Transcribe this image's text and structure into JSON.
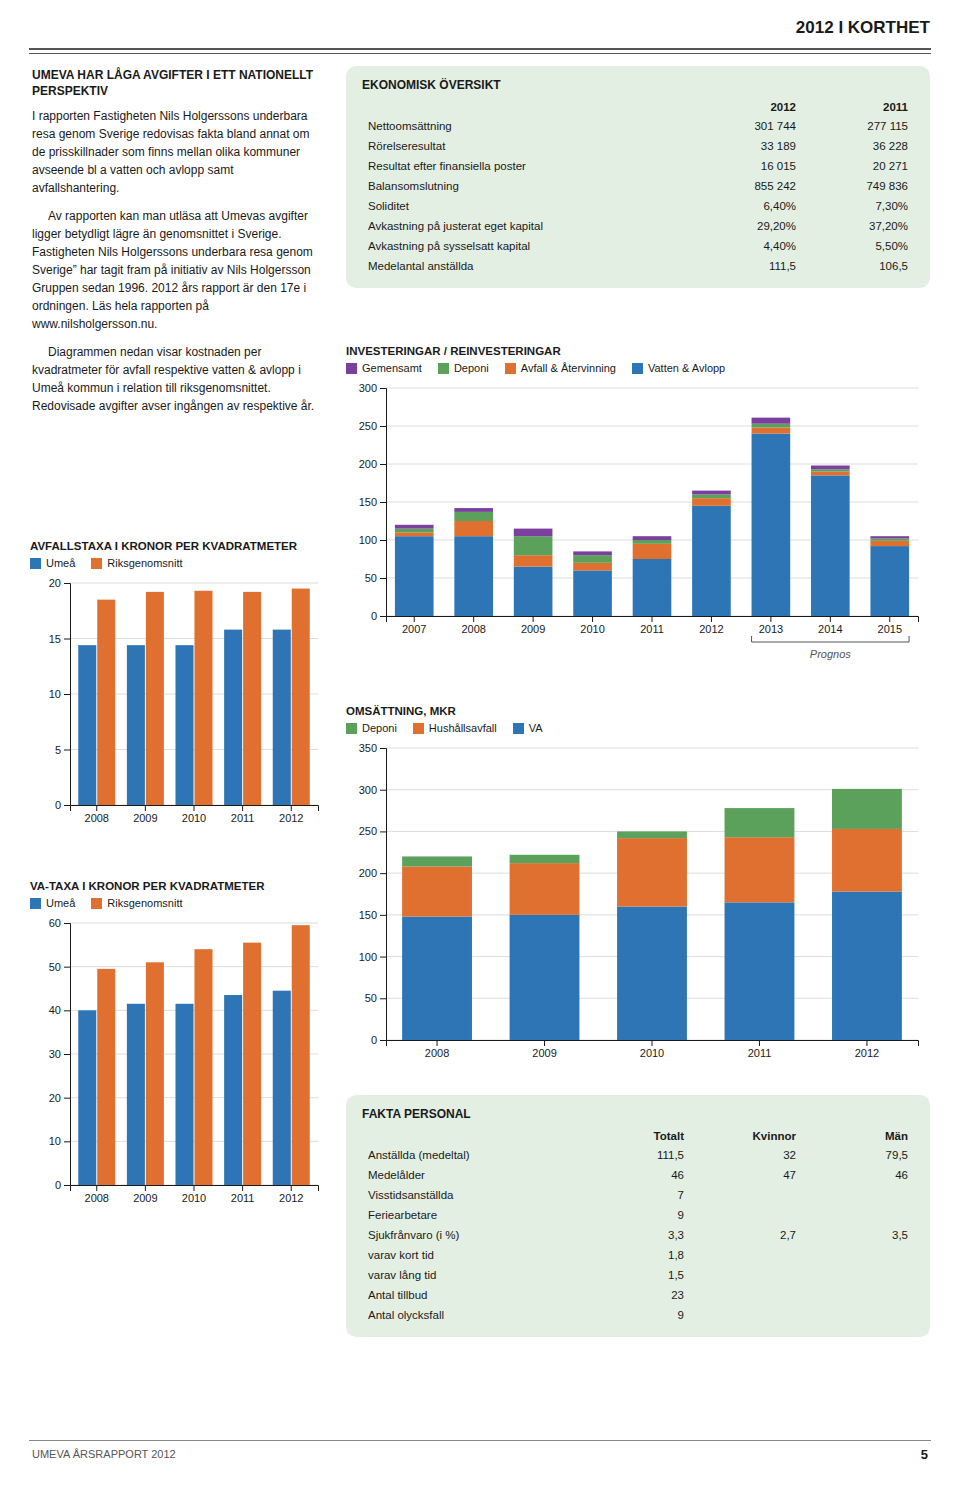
{
  "page_title": "2012 I KORTHET",
  "text": {
    "title": "UMEVA HAR LÅGA AVGIFTER I ETT NATIONELLT PERSPEKTIV",
    "paragraphs": [
      "I rapporten Fastigheten Nils Holgerssons underbara resa genom Sverige redovisas fakta bland annat om de prisskillnader som finns mellan olika kommuner avseende bl a vatten och avlopp samt avfallshantering.",
      "Av rapporten kan man utläsa att Umevas avgifter ligger betydligt lägre än genomsnittet i Sverige. Fastigheten Nils Holgerssons underbara resa genom Sverige” har tagit fram på initiativ av Nils Holgersson Gruppen sedan 1996. 2012 års rapport är den 17e i ordningen. Läs hela rapporten på www.nilsholgersson.nu.",
      "Diagrammen nedan visar kostnaden per kvadratmeter för avfall respektive vatten & avlopp i Umeå kommun i relation till riksgenomsnittet. Redovisade avgifter avser ingången av respektive år."
    ]
  },
  "tables": [
    {
      "title": "EKONOMISK ÖVERSIKT",
      "columns": [
        "2012",
        "2011"
      ],
      "rows": [
        [
          "Nettoomsättning",
          "301 744",
          "277 115"
        ],
        [
          "Rörelseresultat",
          "33 189",
          "36 228"
        ],
        [
          "Resultat efter finansiella poster",
          "16 015",
          "20 271"
        ],
        [
          "Balansomslutning",
          "855 242",
          "749 836"
        ],
        [
          "Soliditet",
          "6,40%",
          "7,30%"
        ],
        [
          "Avkastning på justerat eget kapital",
          "29,20%",
          "37,20%"
        ],
        [
          "Avkastning på sysselsatt kapital",
          "4,40%",
          "5,50%"
        ],
        [
          "Medelantal anställda",
          "111,5",
          "106,5"
        ]
      ]
    },
    {
      "title": "FAKTA PERSONAL",
      "columns": [
        "Totalt",
        "Kvinnor",
        "Män"
      ],
      "rows": [
        [
          "Anställda (medeltal)",
          "111,5",
          "32",
          "79,5"
        ],
        [
          "Medelålder",
          "46",
          "47",
          "46"
        ],
        [
          "Visstidsanställda",
          "7",
          null,
          null
        ],
        [
          "Feriearbetare",
          "9",
          null,
          null
        ],
        [
          "Sjukfrånvaro (i %)",
          "3,3",
          "2,7",
          "3,5"
        ],
        [
          "varav kort tid",
          "1,8",
          null,
          null
        ],
        [
          "varav lång tid",
          "1,5",
          null,
          null
        ],
        [
          "Antal tillbud",
          "23",
          null,
          null
        ],
        [
          "Antal olycksfall",
          "9",
          null,
          null
        ]
      ]
    }
  ],
  "chart_data": [
    {
      "type": "bar",
      "title": "AVFALLSTAXA I KRONOR PER KVADRATMETER",
      "categories": [
        "2008",
        "2009",
        "2010",
        "2011",
        "2012"
      ],
      "series": [
        {
          "name": "Umeå",
          "color": "#2e75b6",
          "values": [
            14.4,
            14.4,
            14.4,
            15.8,
            15.8
          ]
        },
        {
          "name": "Riksgenomsnitt",
          "color": "#e07030",
          "values": [
            18.5,
            19.2,
            19.3,
            19.2,
            19.5
          ]
        }
      ],
      "ylim": [
        0,
        20
      ],
      "yticks": [
        0,
        5,
        10,
        15,
        20
      ],
      "grid": true,
      "legend": "top"
    },
    {
      "type": "bar",
      "title": "VA-TAXA I KRONOR PER KVADRATMETER",
      "categories": [
        "2008",
        "2009",
        "2010",
        "2011",
        "2012"
      ],
      "series": [
        {
          "name": "Umeå",
          "color": "#2e75b6",
          "values": [
            40.0,
            41.5,
            41.5,
            43.5,
            44.5
          ]
        },
        {
          "name": "Riksgenomsnitt",
          "color": "#e07030",
          "values": [
            49.5,
            51.0,
            54.0,
            55.5,
            59.5
          ]
        }
      ],
      "ylim": [
        0,
        60
      ],
      "yticks": [
        0,
        10,
        20,
        30,
        40,
        50,
        60
      ],
      "grid": true,
      "legend": "top"
    },
    {
      "type": "bar",
      "title": "INVESTERINGAR / REINVESTERINGAR",
      "categories": [
        "2007",
        "2008",
        "2009",
        "2010",
        "2011",
        "2012",
        "2013",
        "2014",
        "2015"
      ],
      "series": [
        {
          "name": "Vatten & Avlopp",
          "color": "#2e75b6",
          "values": [
            105,
            105,
            65,
            60,
            75,
            145,
            240,
            185,
            92
          ]
        },
        {
          "name": "Avfall & Återvinning",
          "color": "#e07030",
          "values": [
            5,
            20,
            15,
            10,
            20,
            10,
            8,
            5,
            7
          ]
        },
        {
          "name": "Deponi",
          "color": "#5ba05b",
          "values": [
            5,
            12,
            25,
            10,
            5,
            5,
            5,
            3,
            3
          ]
        },
        {
          "name": "Gemensamt",
          "color": "#7b3f9e",
          "values": [
            5,
            5,
            10,
            5,
            5,
            5,
            8,
            5,
            3
          ]
        }
      ],
      "stacked": true,
      "ylim": [
        0,
        300
      ],
      "yticks": [
        0,
        50,
        100,
        150,
        200,
        250,
        300
      ],
      "grid": true,
      "legend": "top",
      "annotations": [
        {
          "text": "Prognos",
          "x": [
            "2013",
            "2015"
          ]
        }
      ]
    },
    {
      "type": "bar",
      "title": "OMSÄTTNING, MKR",
      "categories": [
        "2008",
        "2009",
        "2010",
        "2011",
        "2012"
      ],
      "series": [
        {
          "name": "VA",
          "color": "#2e75b6",
          "values": [
            148,
            150,
            160,
            165,
            178
          ]
        },
        {
          "name": "Hushållsavfall",
          "color": "#e07030",
          "values": [
            60,
            62,
            82,
            78,
            75
          ]
        },
        {
          "name": "Deponi",
          "color": "#5ba05b",
          "values": [
            12,
            10,
            8,
            35,
            48
          ]
        }
      ],
      "stacked": true,
      "ylim": [
        0,
        350
      ],
      "yticks": [
        0,
        50,
        100,
        150,
        200,
        250,
        300,
        350
      ],
      "grid": true,
      "legend": "top"
    }
  ],
  "footer": {
    "left": "UMEVA ÅRSRAPPORT 2012",
    "right": "5"
  }
}
